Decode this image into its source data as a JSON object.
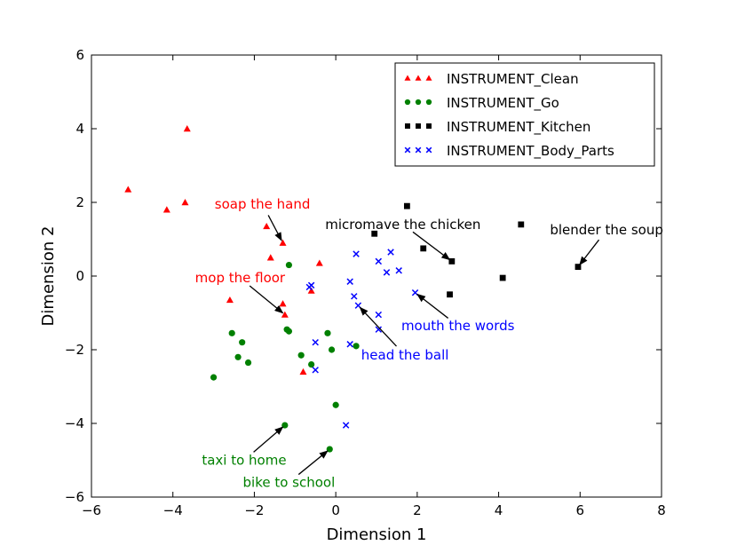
{
  "chart_data": {
    "type": "scatter",
    "title": "",
    "xlabel": "Dimension 1",
    "ylabel": "Dimension 2",
    "xlim": [
      -6,
      8
    ],
    "ylim": [
      -6,
      6
    ],
    "xticks": [
      -6,
      -4,
      -2,
      0,
      2,
      4,
      6,
      8
    ],
    "yticks": [
      -6,
      -4,
      -2,
      0,
      2,
      4,
      6
    ],
    "grid": false,
    "legend_position": "top-right",
    "series": [
      {
        "name": "INSTRUMENT_Clean",
        "marker": "triangle",
        "color": "#ff0000",
        "points": [
          [
            -5.1,
            2.35
          ],
          [
            -4.15,
            1.8
          ],
          [
            -3.7,
            2.0
          ],
          [
            -3.65,
            4.0
          ],
          [
            -2.6,
            -0.65
          ],
          [
            -1.7,
            1.35
          ],
          [
            -1.6,
            0.5
          ],
          [
            -1.3,
            0.9
          ],
          [
            -1.3,
            -0.75
          ],
          [
            -1.25,
            -1.05
          ],
          [
            -0.6,
            -0.4
          ],
          [
            -0.4,
            0.35
          ],
          [
            -0.8,
            -2.6
          ]
        ]
      },
      {
        "name": "INSTRUMENT_Go",
        "marker": "circle",
        "color": "#008000",
        "points": [
          [
            -3.0,
            -2.75
          ],
          [
            -2.55,
            -1.55
          ],
          [
            -2.4,
            -2.2
          ],
          [
            -2.3,
            -1.8
          ],
          [
            -2.15,
            -2.35
          ],
          [
            -1.15,
            0.3
          ],
          [
            -1.2,
            -1.45
          ],
          [
            -1.15,
            -1.5
          ],
          [
            -0.85,
            -2.15
          ],
          [
            -0.6,
            -2.4
          ],
          [
            -0.2,
            -1.55
          ],
          [
            -0.1,
            -2.0
          ],
          [
            0.5,
            -1.9
          ],
          [
            0.0,
            -3.5
          ],
          [
            -1.25,
            -4.05
          ],
          [
            -0.15,
            -4.7
          ]
        ]
      },
      {
        "name": "INSTRUMENT_Kitchen",
        "marker": "square",
        "color": "#000000",
        "points": [
          [
            0.95,
            1.15
          ],
          [
            1.75,
            1.9
          ],
          [
            2.15,
            0.75
          ],
          [
            2.8,
            -0.5
          ],
          [
            2.85,
            0.4
          ],
          [
            4.1,
            -0.05
          ],
          [
            4.55,
            1.4
          ],
          [
            5.95,
            0.25
          ]
        ]
      },
      {
        "name": "INSTRUMENT_Body_Parts",
        "marker": "x",
        "color": "#0000ff",
        "points": [
          [
            -0.65,
            -0.3
          ],
          [
            -0.6,
            -0.25
          ],
          [
            -0.5,
            -1.8
          ],
          [
            -0.5,
            -2.55
          ],
          [
            0.35,
            -0.15
          ],
          [
            0.45,
            -0.55
          ],
          [
            0.5,
            0.6
          ],
          [
            0.55,
            -0.8
          ],
          [
            0.35,
            -1.85
          ],
          [
            1.05,
            0.4
          ],
          [
            1.05,
            -1.05
          ],
          [
            1.05,
            -1.45
          ],
          [
            1.25,
            0.1
          ],
          [
            1.35,
            0.65
          ],
          [
            1.55,
            0.15
          ],
          [
            1.95,
            -0.45
          ],
          [
            0.25,
            -4.05
          ]
        ]
      }
    ],
    "annotations": [
      {
        "text": "soap the hand",
        "color": "#ff0000",
        "text_xy": [
          -1.8,
          1.95
        ],
        "point": [
          -1.3,
          0.9
        ]
      },
      {
        "text": "mop the floor",
        "color": "#ff0000",
        "text_xy": [
          -2.35,
          -0.05
        ],
        "point": [
          -1.25,
          -1.05
        ]
      },
      {
        "text": "micromave the chicken",
        "color": "#000000",
        "text_xy": [
          1.65,
          1.4
        ],
        "point": [
          2.85,
          0.4
        ]
      },
      {
        "text": "blender the soup",
        "color": "#000000",
        "text_xy": [
          6.65,
          1.25
        ],
        "point": [
          5.95,
          0.25
        ]
      },
      {
        "text": "mouth the words",
        "color": "#0000ff",
        "text_xy": [
          3.0,
          -1.35
        ],
        "point": [
          1.95,
          -0.45
        ]
      },
      {
        "text": "head the ball",
        "color": "#0000ff",
        "text_xy": [
          1.7,
          -2.15
        ],
        "point": [
          0.55,
          -0.8
        ]
      },
      {
        "text": "taxi to home",
        "color": "#008000",
        "text_xy": [
          -2.25,
          -5.0
        ],
        "point": [
          -1.25,
          -4.05
        ]
      },
      {
        "text": "bike to school",
        "color": "#008000",
        "text_xy": [
          -1.15,
          -5.6
        ],
        "point": [
          -0.15,
          -4.7
        ]
      }
    ]
  }
}
